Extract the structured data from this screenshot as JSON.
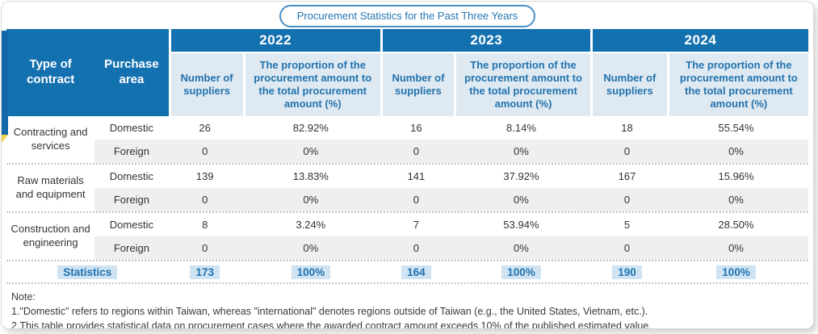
{
  "title": "Procurement Statistics for the Past Three Years",
  "colors": {
    "header_blue": "#1471b0",
    "subheader_bg": "#dfe9f2",
    "subheader_text": "#2273ae",
    "foreign_row_bg": "#efefef",
    "highlight_bg": "#cfe3f2",
    "pill_border": "#4a90c8",
    "flag_yellow": "#f6d44c"
  },
  "table": {
    "type_header": "Type of contract",
    "area_header": "Purchase area",
    "years": [
      "2022",
      "2023",
      "2024"
    ],
    "sub_suppliers": "Number of suppliers",
    "sub_proportion": "The proportion of the procurement amount to the total procurement amount (%)",
    "groups": [
      {
        "type": "Contracting and services",
        "rows": [
          {
            "area": "Domestic",
            "values": [
              "26",
              "82.92%",
              "16",
              "8.14%",
              "18",
              "55.54%"
            ]
          },
          {
            "area": "Foreign",
            "values": [
              "0",
              "0%",
              "0",
              "0%",
              "0",
              "0%"
            ]
          }
        ]
      },
      {
        "type": "Raw materials and equipment",
        "rows": [
          {
            "area": "Domestic",
            "values": [
              "139",
              "13.83%",
              "141",
              "37.92%",
              "167",
              "15.96%"
            ]
          },
          {
            "area": "Foreign",
            "values": [
              "0",
              "0%",
              "0",
              "0%",
              "0",
              "0%"
            ]
          }
        ]
      },
      {
        "type": "Construction and engineering",
        "rows": [
          {
            "area": "Domestic",
            "values": [
              "8",
              "3.24%",
              "7",
              "53.94%",
              "5",
              "28.50%"
            ]
          },
          {
            "area": "Foreign",
            "values": [
              "0",
              "0%",
              "0",
              "0%",
              "0",
              "0%"
            ]
          }
        ]
      }
    ],
    "statistics": {
      "label": "Statistics",
      "values": [
        "173",
        "100%",
        "164",
        "100%",
        "190",
        "100%"
      ]
    }
  },
  "note": {
    "heading": "Note:",
    "line1": "1.\"Domestic\" refers to regions within Taiwan, whereas \"international\" denotes regions outside of Taiwan (e.g., the United States, Vietnam, etc.).",
    "line2": "2.This table provides statistical data on procurement cases where the awarded contract amount exceeds 10% of the published estimated value."
  }
}
